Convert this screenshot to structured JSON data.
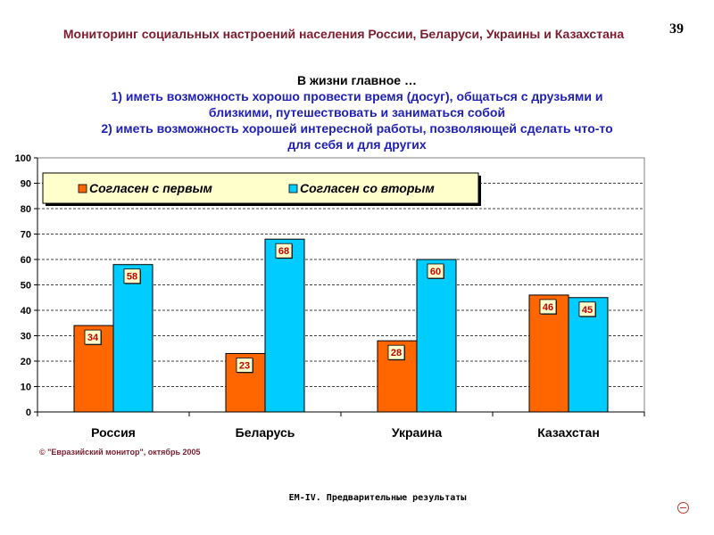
{
  "header": {
    "title": "Мониторинг социальных настроений населения России, Беларуси, Украины и Казахстана",
    "page_number": "39"
  },
  "chart_title": {
    "line1": "В жизни главное …",
    "line2": "1) иметь возможность хорошо провести время (досуг), общаться с друзьями и",
    "line3": "близкими, путешествовать и заниматься собой",
    "line4": "2) иметь возможность хорошей интересной работы, позволяющей сделать что-то",
    "line5": "для себя и для других"
  },
  "chart_data": {
    "type": "bar",
    "categories": [
      "Россия",
      "Беларусь",
      "Украина",
      "Казахстан"
    ],
    "series": [
      {
        "name": "Согласен с первым",
        "values": [
          34,
          23,
          28,
          46
        ],
        "color": "#ff6600"
      },
      {
        "name": "Согласен со вторым",
        "values": [
          58,
          68,
          60,
          45
        ],
        "color": "#00ccff"
      }
    ],
    "ylim": [
      0,
      100
    ],
    "yticks": [
      0,
      10,
      20,
      30,
      40,
      50,
      60,
      70,
      80,
      90,
      100
    ],
    "grid": true,
    "legend_position": "top-left",
    "data_labels": true
  },
  "source_note": "© \"Евразийский монитор\", октябрь 2005",
  "footer": "EM-IV. Предварительные результаты",
  "icons": {
    "nav": "minus-circle-icon"
  }
}
